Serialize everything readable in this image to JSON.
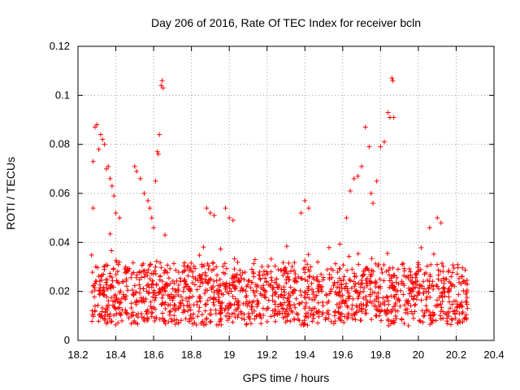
{
  "chart_data": {
    "type": "scatter",
    "title": "Day 206 of 2016, Rate Of TEC Index for receiver bcln",
    "xlabel": "GPS time / hours",
    "ylabel": "ROTI / TECUs",
    "xlim": [
      18.2,
      20.4
    ],
    "ylim": [
      0,
      0.12
    ],
    "x_ticks": [
      "18.2",
      "18.4",
      "18.6",
      "18.8",
      "19",
      "19.2",
      "19.4",
      "19.6",
      "19.8",
      "20",
      "20.2",
      "20.4"
    ],
    "y_ticks": [
      "0",
      "0.02",
      "0.04",
      "0.06",
      "0.08",
      "0.1",
      "0.12"
    ],
    "grid": true,
    "marker": "+",
    "color": "#ff0000",
    "x_range_data": [
      18.27,
      20.26
    ],
    "series": [
      {
        "name": "ROTI",
        "points": [
          [
            18.28,
            0.073
          ],
          [
            18.28,
            0.054
          ],
          [
            18.29,
            0.087
          ],
          [
            18.3,
            0.088
          ],
          [
            18.31,
            0.078
          ],
          [
            18.32,
            0.084
          ],
          [
            18.33,
            0.082
          ],
          [
            18.34,
            0.08
          ],
          [
            18.35,
            0.07
          ],
          [
            18.36,
            0.071
          ],
          [
            18.37,
            0.066
          ],
          [
            18.38,
            0.063
          ],
          [
            18.39,
            0.059
          ],
          [
            18.4,
            0.052
          ],
          [
            18.42,
            0.05
          ],
          [
            18.5,
            0.071
          ],
          [
            18.51,
            0.069
          ],
          [
            18.53,
            0.066
          ],
          [
            18.55,
            0.06
          ],
          [
            18.57,
            0.057
          ],
          [
            18.58,
            0.054
          ],
          [
            18.59,
            0.05
          ],
          [
            18.6,
            0.046
          ],
          [
            18.61,
            0.065
          ],
          [
            18.62,
            0.077
          ],
          [
            18.625,
            0.076
          ],
          [
            18.63,
            0.084
          ],
          [
            18.64,
            0.104
          ],
          [
            18.65,
            0.103
          ],
          [
            18.645,
            0.106
          ],
          [
            18.66,
            0.043
          ],
          [
            18.88,
            0.054
          ],
          [
            18.9,
            0.052
          ],
          [
            18.92,
            0.051
          ],
          [
            18.98,
            0.054
          ],
          [
            19.0,
            0.05
          ],
          [
            19.02,
            0.049
          ],
          [
            19.4,
            0.057
          ],
          [
            19.42,
            0.054
          ],
          [
            19.38,
            0.052
          ],
          [
            19.62,
            0.05
          ],
          [
            19.64,
            0.061
          ],
          [
            19.66,
            0.066
          ],
          [
            19.68,
            0.067
          ],
          [
            19.7,
            0.071
          ],
          [
            19.72,
            0.087
          ],
          [
            19.74,
            0.079
          ],
          [
            19.75,
            0.06
          ],
          [
            19.76,
            0.056
          ],
          [
            19.78,
            0.065
          ],
          [
            19.8,
            0.079
          ],
          [
            19.82,
            0.081
          ],
          [
            19.84,
            0.093
          ],
          [
            19.85,
            0.091
          ],
          [
            19.86,
            0.107
          ],
          [
            19.865,
            0.106
          ],
          [
            19.87,
            0.091
          ],
          [
            20.1,
            0.05
          ],
          [
            20.12,
            0.048
          ],
          [
            20.06,
            0.046
          ]
        ]
      }
    ]
  }
}
